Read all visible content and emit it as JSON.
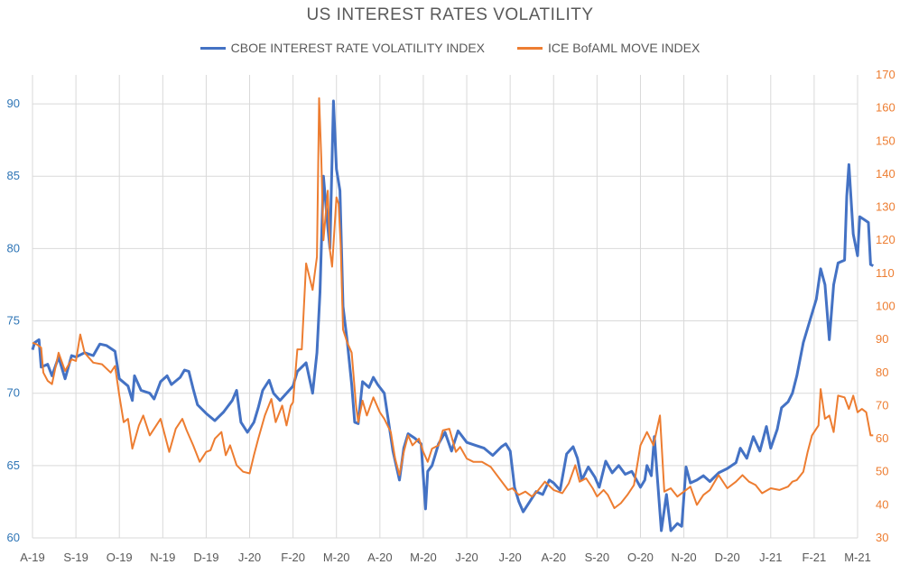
{
  "chart_data": {
    "type": "line",
    "title": "US INTEREST RATES VOLATILITY",
    "xlabel": "",
    "ylabel": "",
    "x_ticks": [
      "A-19",
      "S-19",
      "O-19",
      "N-19",
      "D-19",
      "J-20",
      "F-20",
      "M-20",
      "A-20",
      "M-20",
      "J-20",
      "J-20",
      "A-20",
      "S-20",
      "O-20",
      "N-20",
      "D-20",
      "J-21",
      "F-21",
      "M-21"
    ],
    "y_left": {
      "ticks": [
        60,
        65,
        70,
        75,
        80,
        85,
        90
      ],
      "ylim": [
        60,
        92
      ]
    },
    "y_right": {
      "ticks": [
        30,
        40,
        50,
        60,
        70,
        80,
        90,
        100,
        110,
        120,
        130,
        140,
        150,
        160,
        170
      ],
      "ylim": [
        30,
        170
      ]
    },
    "grid": true,
    "legend_position": "top-center",
    "series": [
      {
        "name": "CBOE INTEREST RATE VOLATILITY INDEX",
        "axis": "left",
        "color": "#4472c4",
        "points": [
          [
            0,
            73.0
          ],
          [
            0.05,
            73.5
          ],
          [
            0.15,
            73.7
          ],
          [
            0.2,
            71.8
          ],
          [
            0.35,
            72.0
          ],
          [
            0.45,
            71.2
          ],
          [
            0.6,
            72.5
          ],
          [
            0.75,
            71.0
          ],
          [
            0.9,
            72.6
          ],
          [
            1.0,
            72.5
          ],
          [
            1.2,
            72.8
          ],
          [
            1.4,
            72.6
          ],
          [
            1.55,
            73.4
          ],
          [
            1.7,
            73.3
          ],
          [
            1.9,
            72.9
          ],
          [
            2.0,
            71.0
          ],
          [
            2.2,
            70.5
          ],
          [
            2.3,
            69.5
          ],
          [
            2.35,
            71.2
          ],
          [
            2.5,
            70.2
          ],
          [
            2.7,
            70.0
          ],
          [
            2.8,
            69.6
          ],
          [
            2.95,
            70.8
          ],
          [
            3.1,
            71.2
          ],
          [
            3.2,
            70.6
          ],
          [
            3.4,
            71.1
          ],
          [
            3.5,
            71.6
          ],
          [
            3.6,
            71.5
          ],
          [
            3.7,
            70.3
          ],
          [
            3.8,
            69.2
          ],
          [
            4.0,
            68.6
          ],
          [
            4.2,
            68.1
          ],
          [
            4.4,
            68.7
          ],
          [
            4.6,
            69.5
          ],
          [
            4.7,
            70.2
          ],
          [
            4.8,
            68.0
          ],
          [
            4.95,
            67.3
          ],
          [
            5.1,
            68.0
          ],
          [
            5.2,
            69.0
          ],
          [
            5.3,
            70.2
          ],
          [
            5.45,
            70.9
          ],
          [
            5.55,
            70.0
          ],
          [
            5.7,
            69.5
          ],
          [
            5.85,
            70.0
          ],
          [
            6.0,
            70.5
          ],
          [
            6.1,
            71.5
          ],
          [
            6.3,
            72.1
          ],
          [
            6.45,
            70.0
          ],
          [
            6.55,
            72.8
          ],
          [
            6.62,
            77.0
          ],
          [
            6.7,
            85.0
          ],
          [
            6.8,
            81.5
          ],
          [
            6.85,
            80.0
          ],
          [
            6.93,
            90.2
          ],
          [
            7.0,
            85.5
          ],
          [
            7.08,
            84.0
          ],
          [
            7.15,
            76.0
          ],
          [
            7.25,
            73.5
          ],
          [
            7.35,
            70.6
          ],
          [
            7.42,
            68.0
          ],
          [
            7.5,
            67.9
          ],
          [
            7.6,
            70.8
          ],
          [
            7.75,
            70.4
          ],
          [
            7.85,
            71.1
          ],
          [
            7.95,
            70.6
          ],
          [
            8.1,
            70.0
          ],
          [
            8.3,
            66.0
          ],
          [
            8.45,
            64.0
          ],
          [
            8.55,
            66.2
          ],
          [
            8.65,
            67.2
          ],
          [
            8.8,
            66.9
          ],
          [
            8.95,
            66.5
          ],
          [
            9.05,
            62.0
          ],
          [
            9.1,
            64.6
          ],
          [
            9.2,
            65.0
          ],
          [
            9.35,
            66.5
          ],
          [
            9.5,
            67.3
          ],
          [
            9.65,
            66.0
          ],
          [
            9.8,
            67.4
          ],
          [
            10.0,
            66.6
          ],
          [
            10.2,
            66.4
          ],
          [
            10.4,
            66.2
          ],
          [
            10.6,
            65.7
          ],
          [
            10.8,
            66.3
          ],
          [
            10.9,
            66.5
          ],
          [
            11.0,
            66.0
          ],
          [
            11.1,
            63.5
          ],
          [
            11.2,
            62.5
          ],
          [
            11.3,
            61.8
          ],
          [
            11.45,
            62.5
          ],
          [
            11.6,
            63.2
          ],
          [
            11.75,
            63.0
          ],
          [
            11.9,
            64.0
          ],
          [
            12.0,
            63.8
          ],
          [
            12.15,
            63.3
          ],
          [
            12.3,
            65.8
          ],
          [
            12.45,
            66.3
          ],
          [
            12.55,
            65.5
          ],
          [
            12.65,
            64.0
          ],
          [
            12.8,
            64.9
          ],
          [
            12.95,
            64.2
          ],
          [
            13.05,
            63.5
          ],
          [
            13.2,
            65.3
          ],
          [
            13.35,
            64.5
          ],
          [
            13.5,
            65.0
          ],
          [
            13.65,
            64.4
          ],
          [
            13.8,
            64.6
          ],
          [
            14.0,
            63.5
          ],
          [
            14.1,
            64.0
          ],
          [
            14.15,
            65.0
          ],
          [
            14.25,
            64.3
          ],
          [
            14.32,
            67.0
          ],
          [
            14.38,
            64.5
          ],
          [
            14.48,
            60.5
          ],
          [
            14.6,
            63.0
          ],
          [
            14.7,
            60.5
          ],
          [
            14.85,
            61.0
          ],
          [
            14.95,
            60.8
          ],
          [
            15.05,
            64.9
          ],
          [
            15.15,
            63.8
          ],
          [
            15.3,
            64.0
          ],
          [
            15.45,
            64.3
          ],
          [
            15.6,
            63.9
          ],
          [
            15.8,
            64.5
          ],
          [
            16.0,
            64.8
          ],
          [
            16.2,
            65.2
          ],
          [
            16.3,
            66.2
          ],
          [
            16.45,
            65.5
          ],
          [
            16.6,
            67.0
          ],
          [
            16.75,
            66.0
          ],
          [
            16.9,
            67.7
          ],
          [
            17.0,
            66.2
          ],
          [
            17.15,
            67.5
          ],
          [
            17.25,
            69.0
          ],
          [
            17.4,
            69.4
          ],
          [
            17.5,
            70.0
          ],
          [
            17.6,
            71.2
          ],
          [
            17.75,
            73.5
          ],
          [
            17.85,
            74.5
          ],
          [
            17.95,
            75.5
          ],
          [
            18.05,
            76.5
          ],
          [
            18.15,
            78.6
          ],
          [
            18.25,
            77.5
          ],
          [
            18.35,
            73.7
          ],
          [
            18.45,
            77.5
          ],
          [
            18.55,
            79.0
          ],
          [
            18.7,
            79.2
          ],
          [
            18.75,
            83.6
          ],
          [
            18.8,
            85.8
          ],
          [
            18.9,
            81.0
          ],
          [
            19.0,
            79.5
          ],
          [
            19.05,
            82.2
          ],
          [
            19.15,
            82.0
          ],
          [
            19.25,
            81.8
          ],
          [
            19.3,
            78.9
          ],
          [
            19.36,
            78.8
          ]
        ]
      },
      {
        "name": "ICE BofAML MOVE INDEX",
        "axis": "right",
        "color": "#ed7d31",
        "points": [
          [
            0,
            89.0
          ],
          [
            0.1,
            88.5
          ],
          [
            0.2,
            87.5
          ],
          [
            0.25,
            80.0
          ],
          [
            0.35,
            77.5
          ],
          [
            0.45,
            76.5
          ],
          [
            0.6,
            86.0
          ],
          [
            0.75,
            80.5
          ],
          [
            0.9,
            84.0
          ],
          [
            1.0,
            83.5
          ],
          [
            1.1,
            91.5
          ],
          [
            1.2,
            86.0
          ],
          [
            1.4,
            83.0
          ],
          [
            1.6,
            82.5
          ],
          [
            1.8,
            80.0
          ],
          [
            1.9,
            82.0
          ],
          [
            2.0,
            73.0
          ],
          [
            2.1,
            65.0
          ],
          [
            2.2,
            66.0
          ],
          [
            2.3,
            57.0
          ],
          [
            2.45,
            64.0
          ],
          [
            2.55,
            67.0
          ],
          [
            2.7,
            61.0
          ],
          [
            2.85,
            64.0
          ],
          [
            2.95,
            66.0
          ],
          [
            3.05,
            61.0
          ],
          [
            3.15,
            56.0
          ],
          [
            3.3,
            63.0
          ],
          [
            3.45,
            66.0
          ],
          [
            3.55,
            62.5
          ],
          [
            3.7,
            58.0
          ],
          [
            3.85,
            53.0
          ],
          [
            4.0,
            56.0
          ],
          [
            4.1,
            56.5
          ],
          [
            4.2,
            60.0
          ],
          [
            4.35,
            62.0
          ],
          [
            4.45,
            55.0
          ],
          [
            4.55,
            58.0
          ],
          [
            4.7,
            52.0
          ],
          [
            4.85,
            50.0
          ],
          [
            5.0,
            49.5
          ],
          [
            5.1,
            55.0
          ],
          [
            5.2,
            60.0
          ],
          [
            5.35,
            67.0
          ],
          [
            5.5,
            72.0
          ],
          [
            5.6,
            65.0
          ],
          [
            5.75,
            70.0
          ],
          [
            5.85,
            64.0
          ],
          [
            5.95,
            70.0
          ],
          [
            6.0,
            71.0
          ],
          [
            6.1,
            87.0
          ],
          [
            6.2,
            87.0
          ],
          [
            6.3,
            113.0
          ],
          [
            6.45,
            105.0
          ],
          [
            6.55,
            115.0
          ],
          [
            6.6,
            163.0
          ],
          [
            6.65,
            145.0
          ],
          [
            6.7,
            120.0
          ],
          [
            6.8,
            135.0
          ],
          [
            6.85,
            117.0
          ],
          [
            6.9,
            112.0
          ],
          [
            7.0,
            133.0
          ],
          [
            7.05,
            131.0
          ],
          [
            7.1,
            118.0
          ],
          [
            7.15,
            93.0
          ],
          [
            7.25,
            89.0
          ],
          [
            7.35,
            86.0
          ],
          [
            7.45,
            70.0
          ],
          [
            7.5,
            65.0
          ],
          [
            7.6,
            71.5
          ],
          [
            7.7,
            67.0
          ],
          [
            7.85,
            72.5
          ],
          [
            8.0,
            68.0
          ],
          [
            8.1,
            66.0
          ],
          [
            8.25,
            62.0
          ],
          [
            8.35,
            54.0
          ],
          [
            8.45,
            49.0
          ],
          [
            8.55,
            56.0
          ],
          [
            8.65,
            61.0
          ],
          [
            8.75,
            58.0
          ],
          [
            8.9,
            60.0
          ],
          [
            9.0,
            56.0
          ],
          [
            9.1,
            53.0
          ],
          [
            9.2,
            57.0
          ],
          [
            9.35,
            58.0
          ],
          [
            9.45,
            62.5
          ],
          [
            9.6,
            63.0
          ],
          [
            9.75,
            56.0
          ],
          [
            9.85,
            57.5
          ],
          [
            10.0,
            54.0
          ],
          [
            10.15,
            53.0
          ],
          [
            10.35,
            53.0
          ],
          [
            10.55,
            51.5
          ],
          [
            10.75,
            48.0
          ],
          [
            10.95,
            44.5
          ],
          [
            11.05,
            45.0
          ],
          [
            11.2,
            43.0
          ],
          [
            11.35,
            44.0
          ],
          [
            11.5,
            42.5
          ],
          [
            11.65,
            44.5
          ],
          [
            11.8,
            47.0
          ],
          [
            12.0,
            44.5
          ],
          [
            12.2,
            43.5
          ],
          [
            12.35,
            46.5
          ],
          [
            12.5,
            52.0
          ],
          [
            12.6,
            47.0
          ],
          [
            12.75,
            48.0
          ],
          [
            12.9,
            45.0
          ],
          [
            13.0,
            42.5
          ],
          [
            13.15,
            44.5
          ],
          [
            13.25,
            43.0
          ],
          [
            13.4,
            39.0
          ],
          [
            13.55,
            40.5
          ],
          [
            13.7,
            43.0
          ],
          [
            13.85,
            46.0
          ],
          [
            14.0,
            58.0
          ],
          [
            14.15,
            62.0
          ],
          [
            14.3,
            58.0
          ],
          [
            14.45,
            67.0
          ],
          [
            14.55,
            44.0
          ],
          [
            14.7,
            45.0
          ],
          [
            14.85,
            42.5
          ],
          [
            15.0,
            44.0
          ],
          [
            15.15,
            45.5
          ],
          [
            15.3,
            40.0
          ],
          [
            15.45,
            43.0
          ],
          [
            15.6,
            44.5
          ],
          [
            15.8,
            49.0
          ],
          [
            16.0,
            45.0
          ],
          [
            16.2,
            47.0
          ],
          [
            16.35,
            49.0
          ],
          [
            16.5,
            47.0
          ],
          [
            16.65,
            46.0
          ],
          [
            16.8,
            43.5
          ],
          [
            17.0,
            45.0
          ],
          [
            17.2,
            44.5
          ],
          [
            17.4,
            45.5
          ],
          [
            17.5,
            47.0
          ],
          [
            17.6,
            47.5
          ],
          [
            17.75,
            50.0
          ],
          [
            17.85,
            56.0
          ],
          [
            17.95,
            61.0
          ],
          [
            18.1,
            64.0
          ],
          [
            18.15,
            75.0
          ],
          [
            18.25,
            66.0
          ],
          [
            18.35,
            67.0
          ],
          [
            18.45,
            62.0
          ],
          [
            18.55,
            73.0
          ],
          [
            18.7,
            72.5
          ],
          [
            18.8,
            69.0
          ],
          [
            18.9,
            73.0
          ],
          [
            19.0,
            68.0
          ],
          [
            19.1,
            69.0
          ],
          [
            19.2,
            68.0
          ],
          [
            19.3,
            61.0
          ],
          [
            19.36,
            61.0
          ]
        ]
      }
    ]
  }
}
